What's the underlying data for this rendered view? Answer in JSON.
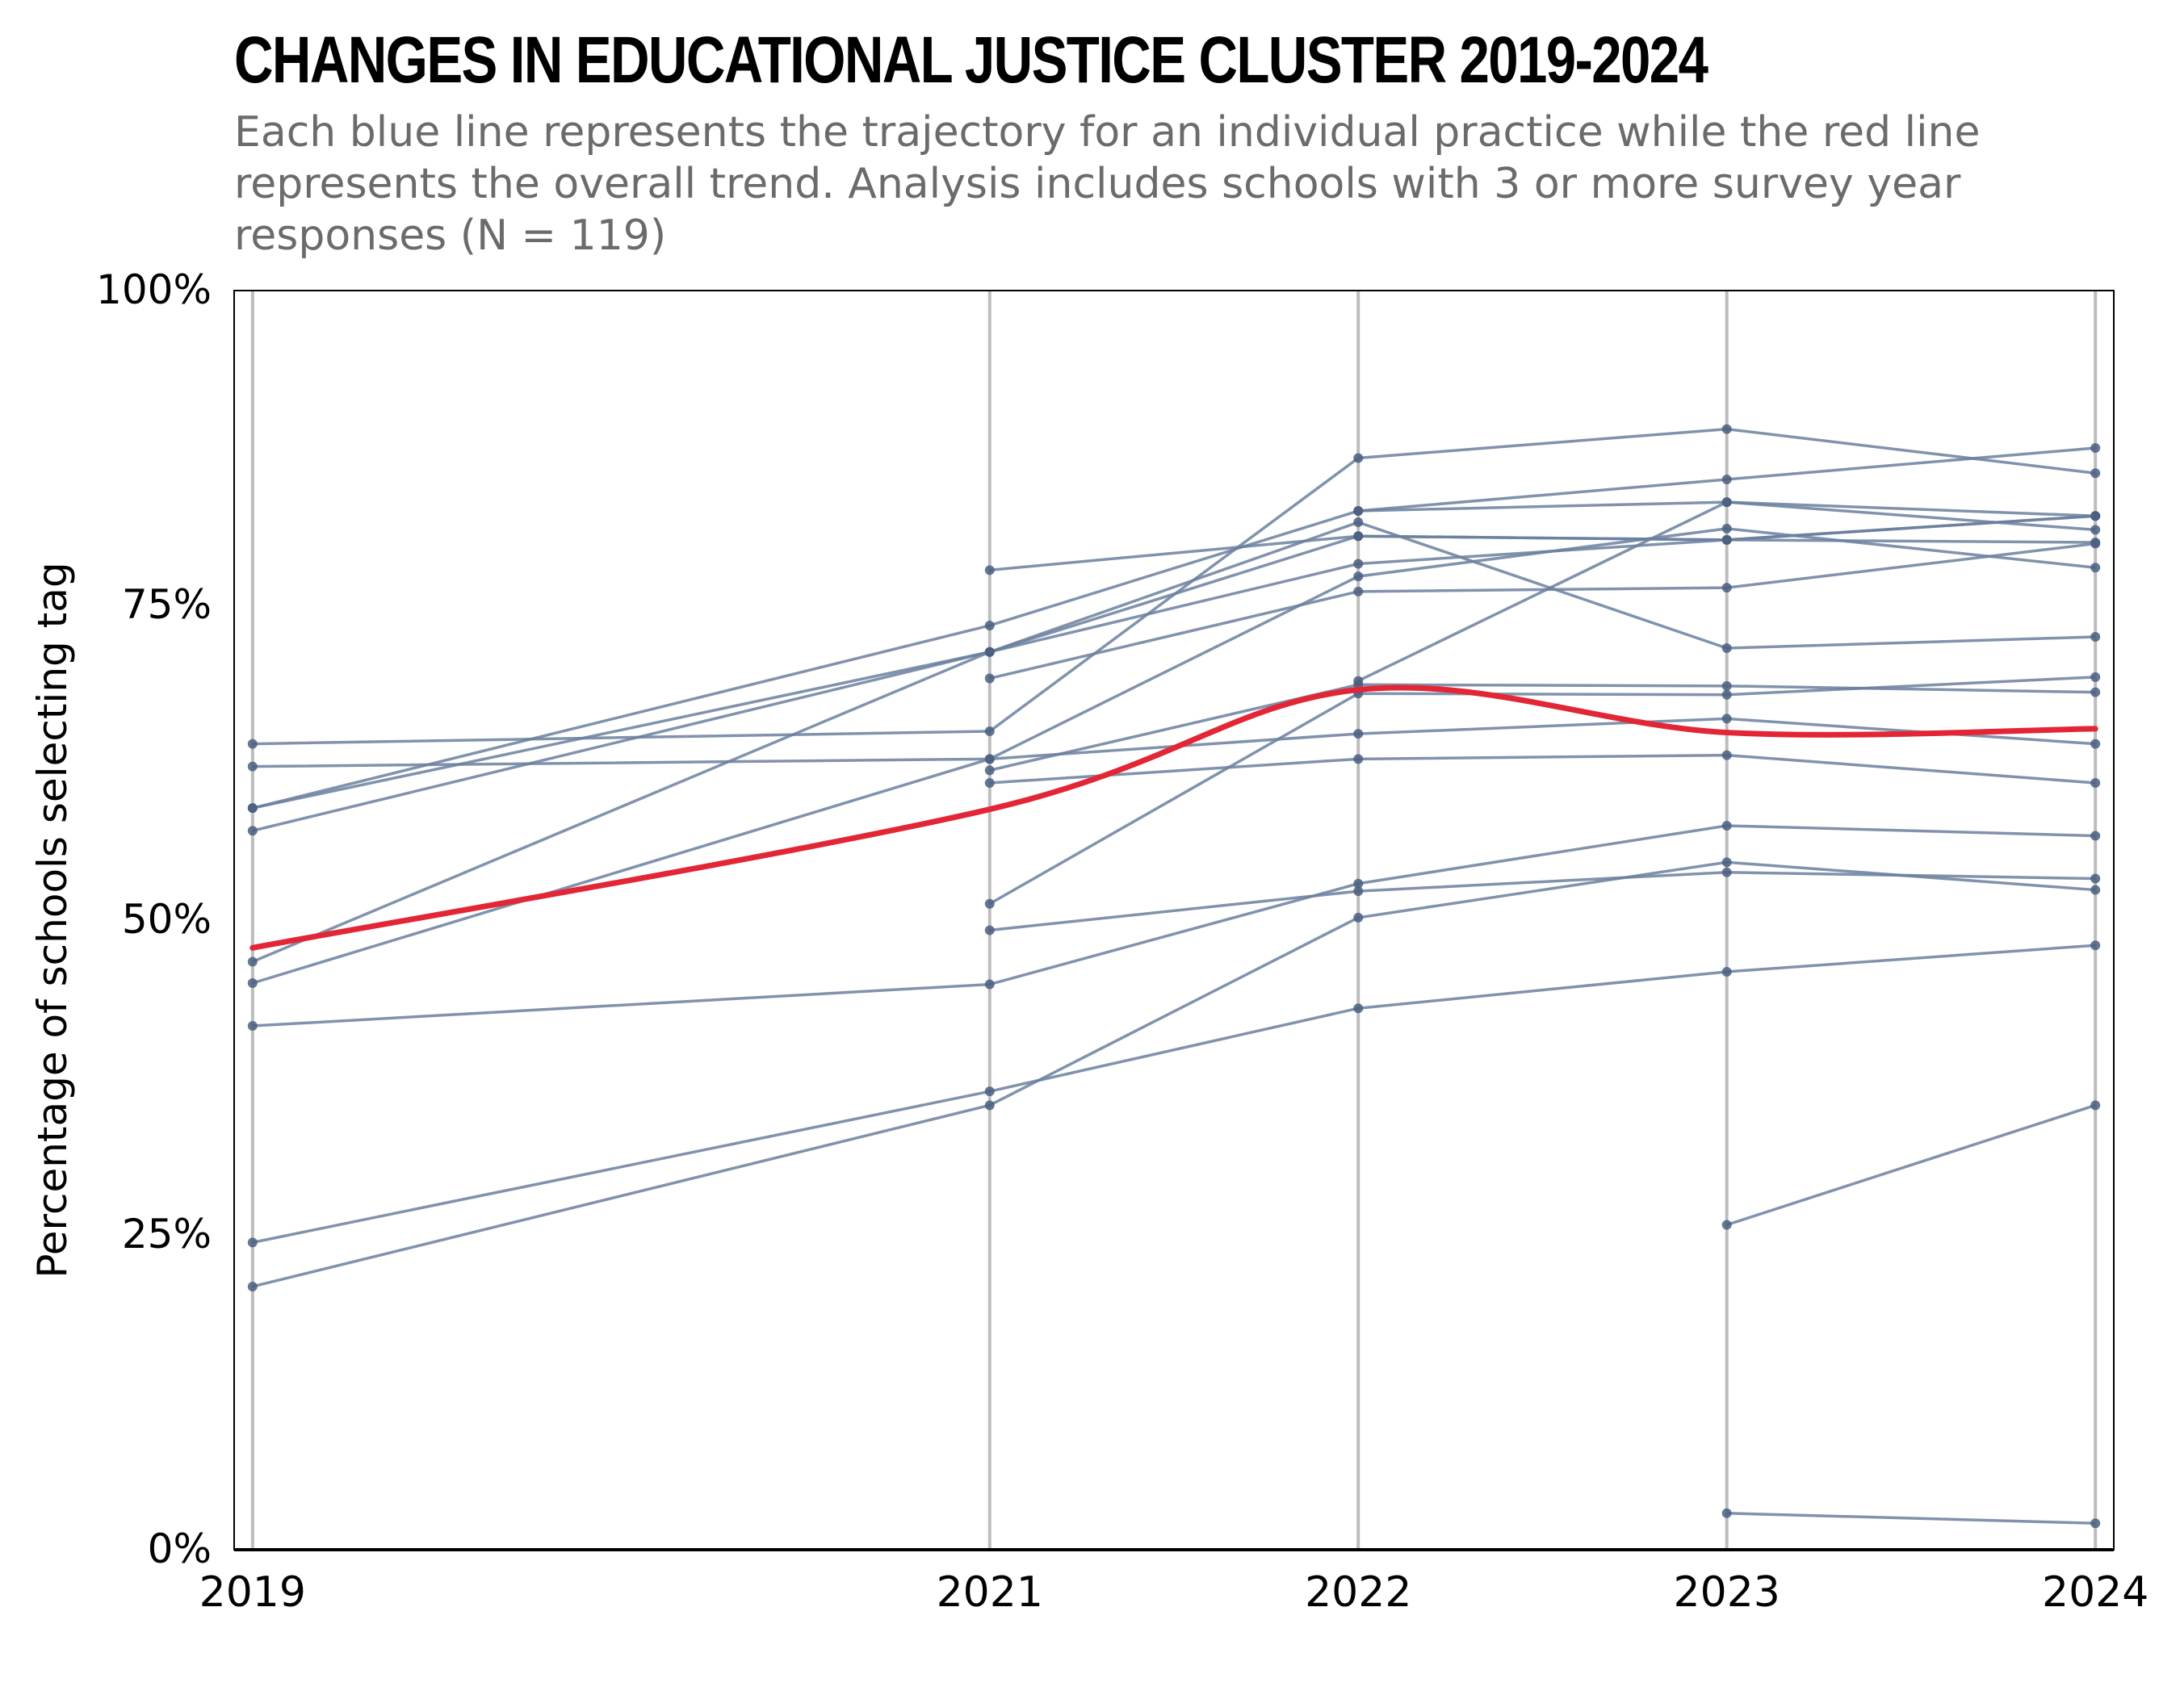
{
  "title": "CHANGES IN EDUCATIONAL JUSTICE CLUSTER 2019-2024",
  "subtitle": "Each blue line represents the trajectory for an individual practice while the red line represents the overall trend. Analysis includes schools with 3 or more survey year responses (N = 119)",
  "colors": {
    "practice": "#6a7f9e",
    "trend": "#e32636",
    "grid": "#bdbdbd",
    "axis": "#000000"
  },
  "chart_data": {
    "type": "line",
    "title": "CHANGES IN EDUCATIONAL JUSTICE CLUSTER 2019-2024",
    "subtitle": "Each blue line represents the trajectory for an individual practice while the red line represents the overall trend. Analysis includes schools with 3 or more survey year responses (N = 119)",
    "xlabel": "",
    "ylabel": "Percentage of schools selecting tag",
    "x": [
      2019,
      2021,
      2022,
      2023,
      2024
    ],
    "xticks": [
      "2019",
      "2021",
      "2022",
      "2023",
      "2024"
    ],
    "yticks": [
      "0%",
      "25%",
      "50%",
      "75%",
      "100%"
    ],
    "ylim": [
      0,
      100
    ],
    "grid": "vertical lines at each year",
    "series": [
      {
        "values": [
          58.9,
          71.3,
          78.3,
          80.2,
          82.1
        ]
      },
      {
        "values": [
          58.9,
          73.4,
          82.5,
          85.0,
          87.5
        ]
      },
      {
        "values": [
          57.1,
          71.3,
          81.6,
          71.6,
          72.5
        ]
      },
      {
        "values": [
          64.0,
          65.0,
          86.7,
          89.0,
          85.5
        ]
      },
      {
        "values": [
          62.2,
          62.8,
          64.8,
          66.0,
          64.0
        ]
      },
      {
        "values": [
          46.7,
          71.3,
          80.5,
          80.2,
          82.1
        ]
      },
      {
        "values": [
          45.0,
          62.8,
          77.3,
          81.1,
          78.0
        ]
      },
      {
        "values": [
          41.6,
          44.9,
          52.9,
          57.5,
          56.7
        ]
      },
      {
        "values": [
          24.4,
          36.4,
          43.0,
          45.9,
          48.0
        ]
      },
      {
        "values": [
          20.9,
          35.3,
          50.2,
          54.6,
          52.4
        ]
      },
      {
        "values": [
          null,
          77.8,
          80.5,
          80.2,
          80.0
        ]
      },
      {
        "values": [
          null,
          69.2,
          76.1,
          76.4,
          79.9
        ]
      },
      {
        "values": [
          null,
          61.9,
          68.7,
          68.6,
          68.1
        ]
      },
      {
        "values": [
          null,
          60.9,
          62.8,
          63.1,
          60.9
        ]
      },
      {
        "values": [
          null,
          51.3,
          68.0,
          67.9,
          69.3
        ]
      },
      {
        "values": [
          null,
          49.2,
          52.3,
          53.8,
          53.3
        ]
      },
      {
        "values": [
          null,
          null,
          82.5,
          83.2,
          82.1
        ]
      },
      {
        "values": [
          null,
          null,
          69.0,
          83.2,
          81.0
        ]
      },
      {
        "values": [
          null,
          null,
          null,
          25.8,
          35.3
        ]
      },
      {
        "values": [
          null,
          null,
          null,
          2.9,
          2.1
        ]
      }
    ],
    "trend": {
      "x": [
        2019,
        2021,
        2022,
        2023,
        2024
      ],
      "values": [
        47.8,
        58.8,
        68.3,
        64.9,
        65.2
      ]
    }
  }
}
